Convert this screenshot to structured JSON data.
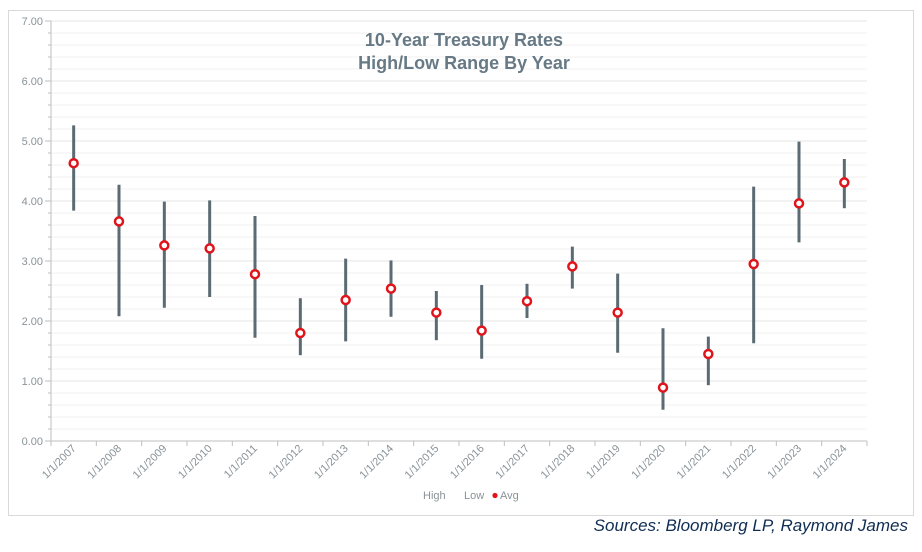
{
  "chart_data": {
    "type": "range",
    "title_lines": [
      "10-Year Treasury Rates",
      "High/Low Range By Year"
    ],
    "categories": [
      "1/1/2007",
      "1/1/2008",
      "1/1/2009",
      "1/1/2010",
      "1/1/2011",
      "1/1/2012",
      "1/1/2013",
      "1/1/2014",
      "1/1/2015",
      "1/1/2016",
      "1/1/2017",
      "1/1/2018",
      "1/1/2019",
      "1/1/2020",
      "1/1/2021",
      "1/1/2022",
      "1/1/2023",
      "1/1/2024"
    ],
    "series": [
      {
        "name": "High",
        "values": [
          5.26,
          4.27,
          3.99,
          4.01,
          3.75,
          2.38,
          3.04,
          3.01,
          2.5,
          2.6,
          2.62,
          3.24,
          2.79,
          1.88,
          1.74,
          4.24,
          4.99,
          4.7
        ]
      },
      {
        "name": "Low",
        "values": [
          3.84,
          2.08,
          2.22,
          2.4,
          1.72,
          1.43,
          1.66,
          2.07,
          1.68,
          1.37,
          2.05,
          2.54,
          1.47,
          0.52,
          0.93,
          1.63,
          3.31,
          3.88
        ]
      },
      {
        "name": "Avg",
        "values": [
          4.63,
          3.66,
          3.26,
          3.21,
          2.78,
          1.8,
          2.35,
          2.54,
          2.14,
          1.84,
          2.33,
          2.91,
          2.14,
          0.89,
          1.45,
          2.95,
          3.96,
          4.31
        ]
      }
    ],
    "ylim": [
      0,
      7
    ],
    "y_ticks": [
      "0.00",
      "1.00",
      "2.00",
      "3.00",
      "4.00",
      "5.00",
      "6.00",
      "7.00"
    ],
    "grid": true,
    "legend_position": "bottom",
    "colors": {
      "range_bar": "#5b6b73",
      "avg_marker": "#e0141b",
      "grid": "#e6e6e6",
      "axis": "#bfbfbf"
    }
  },
  "source_note": "Sources: Bloomberg LP, Raymond James"
}
